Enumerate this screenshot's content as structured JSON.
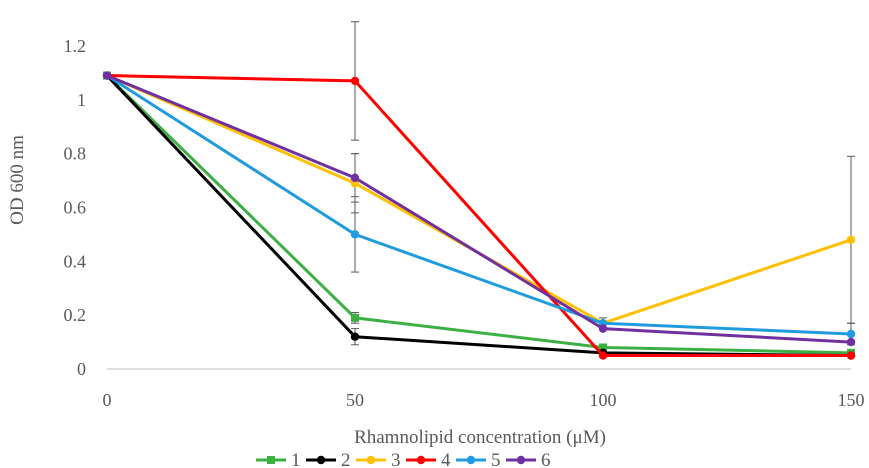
{
  "chart_data": {
    "type": "line",
    "title": "",
    "xlabel": "Rhamnolipid concentration (μM)",
    "ylabel": "OD 600 nm",
    "categories": [
      "0",
      "50",
      "100",
      "150"
    ],
    "x": [
      0,
      50,
      100,
      150
    ],
    "ylim": [
      0,
      1.3
    ],
    "yticks": [
      0,
      0.2,
      0.4,
      0.6,
      0.8,
      1,
      1.2
    ],
    "ytick_labels": [
      "0",
      "0.2",
      "0.4",
      "0.6",
      "0.8",
      "1",
      "1.2"
    ],
    "grid": false,
    "legend": "bottom",
    "series": [
      {
        "name": "1",
        "color": "#3cb043",
        "marker": "square",
        "values": [
          1.09,
          0.19,
          0.08,
          0.06
        ],
        "errors": [
          0,
          0.02,
          0,
          0
        ]
      },
      {
        "name": "2",
        "color": "#000000",
        "marker": "circle",
        "values": [
          1.09,
          0.12,
          0.06,
          0.05
        ],
        "errors": [
          0,
          0.03,
          0,
          0
        ]
      },
      {
        "name": "3",
        "color": "#ffc000",
        "marker": "circle",
        "values": [
          1.09,
          0.69,
          0.17,
          0.48
        ],
        "errors": [
          0,
          0.11,
          0,
          0.31
        ]
      },
      {
        "name": "4",
        "color": "#ff0000",
        "marker": "circle",
        "values": [
          1.09,
          1.07,
          0.05,
          0.05
        ],
        "errors": [
          0,
          0.22,
          0,
          0
        ]
      },
      {
        "name": "5",
        "color": "#1f9bde",
        "marker": "circle",
        "values": [
          1.09,
          0.5,
          0.17,
          0.13
        ],
        "errors": [
          0,
          0.14,
          0.02,
          0.04
        ]
      },
      {
        "name": "6",
        "color": "#7030a0",
        "marker": "circle",
        "values": [
          1.09,
          0.71,
          0.15,
          0.1
        ],
        "errors": [
          0,
          0.09,
          0,
          0
        ]
      }
    ]
  }
}
